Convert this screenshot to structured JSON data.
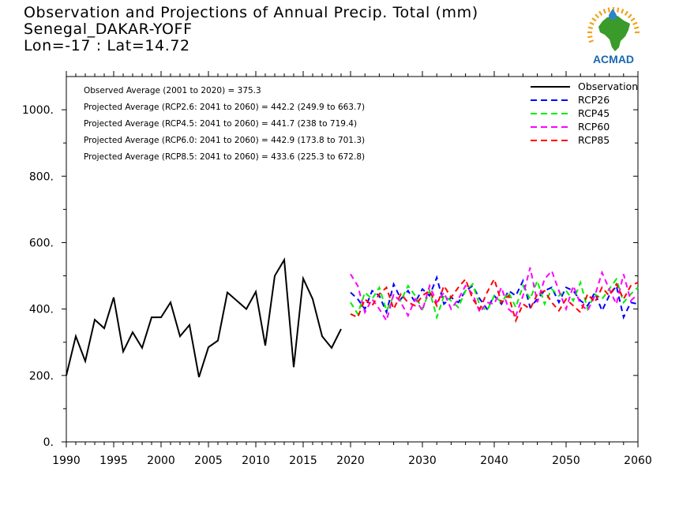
{
  "header": {
    "title": "Observation and Projections of Annual Precip. Total (mm)",
    "station": "Senegal_DAKAR-YOFF",
    "coords": "Lon=-17 : Lat=14.72"
  },
  "logo": {
    "text": "ACMAD",
    "icon": "africa-sun-logo-icon",
    "colors": {
      "africa": "#3a9a2a",
      "rays": "#f2a21a",
      "drop": "#2f84c9",
      "text": "#1a68b0"
    }
  },
  "stats": [
    "Observed Average (2001 to 2020) = 375.3",
    "Projected Average (RCP2.6: 2041 to 2060) = 442.2 (249.9 to 663.7)",
    "Projected Average (RCP4.5: 2041 to 2060) = 441.7 (238 to 719.4)",
    "Projected Average (RCP6.0: 2041 to 2060) = 442.9 (173.8 to 701.3)",
    "Projected Average (RCP8.5: 2041 to 2060) = 433.6 (225.3 to 672.8)"
  ],
  "chart_data": {
    "type": "line",
    "title": "Observation and Projections of Annual Precip. Total (mm)",
    "xlabel": "",
    "ylabel": "",
    "xlim": [
      1990,
      2060
    ],
    "ylim": [
      0,
      1100
    ],
    "x_axis_break": 2020,
    "x_ticks": [
      1990,
      1995,
      2000,
      2005,
      2010,
      2015,
      2020,
      2030,
      2040,
      2050,
      2060
    ],
    "x_tick_labels": [
      "1990",
      "1995",
      "2000",
      "2005",
      "2010",
      "2015",
      "2020",
      "2030",
      "2040",
      "2050",
      "2060"
    ],
    "y_ticks": [
      0,
      200,
      400,
      600,
      800,
      1000
    ],
    "y_tick_labels": [
      "0.",
      "200.",
      "400.",
      "600.",
      "800.",
      "1000."
    ],
    "grid": false,
    "legend_position": "top-right",
    "series": [
      {
        "name": "Observation",
        "color": "#000000",
        "style": "solid",
        "x": [
          1990,
          1991,
          1992,
          1993,
          1994,
          1995,
          1996,
          1997,
          1998,
          1999,
          2000,
          2001,
          2002,
          2003,
          2004,
          2005,
          2006,
          2007,
          2008,
          2009,
          2010,
          2011,
          2012,
          2013,
          2014,
          2015,
          2016,
          2017,
          2018,
          2019,
          2020
        ],
        "values": [
          200,
          318,
          243,
          368,
          342,
          435,
          272,
          330,
          283,
          375,
          375,
          420,
          318,
          352,
          195,
          285,
          305,
          450,
          425,
          400,
          452,
          290,
          500,
          548,
          225,
          492,
          430,
          318,
          283,
          340,
          null
        ]
      },
      {
        "name": "RCP26",
        "color": "#0000ff",
        "style": "dashed",
        "x": [
          2020,
          2021,
          2022,
          2023,
          2024,
          2025,
          2026,
          2027,
          2028,
          2029,
          2030,
          2031,
          2032,
          2033,
          2034,
          2035,
          2036,
          2037,
          2038,
          2039,
          2040,
          2041,
          2042,
          2043,
          2044,
          2045,
          2046,
          2047,
          2048,
          2049,
          2050,
          2051,
          2052,
          2053,
          2054,
          2055,
          2056,
          2057,
          2058,
          2059,
          2060
        ],
        "values": [
          450,
          430,
          400,
          455,
          440,
          390,
          475,
          430,
          455,
          420,
          460,
          440,
          495,
          415,
          435,
          420,
          455,
          470,
          430,
          400,
          440,
          415,
          455,
          440,
          485,
          405,
          430,
          455,
          465,
          420,
          465,
          455,
          425,
          410,
          450,
          395,
          440,
          470,
          375,
          420,
          415
        ]
      },
      {
        "name": "RCP45",
        "color": "#00ee00",
        "style": "dashed",
        "x": [
          2020,
          2021,
          2022,
          2023,
          2024,
          2025,
          2026,
          2027,
          2028,
          2029,
          2030,
          2031,
          2032,
          2033,
          2034,
          2035,
          2036,
          2037,
          2038,
          2039,
          2040,
          2041,
          2042,
          2043,
          2044,
          2045,
          2046,
          2047,
          2048,
          2049,
          2050,
          2051,
          2052,
          2053,
          2054,
          2055,
          2056,
          2057,
          2058,
          2059,
          2060
        ],
        "values": [
          420,
          385,
          450,
          430,
          465,
          395,
          440,
          425,
          470,
          440,
          400,
          455,
          375,
          440,
          425,
          405,
          455,
          475,
          410,
          395,
          440,
          420,
          450,
          405,
          470,
          430,
          485,
          415,
          460,
          440,
          455,
          425,
          480,
          400,
          445,
          430,
          460,
          490,
          420,
          445,
          465
        ]
      },
      {
        "name": "RCP60",
        "color": "#ff00ff",
        "style": "dashed",
        "x": [
          2020,
          2021,
          2022,
          2023,
          2024,
          2025,
          2026,
          2027,
          2028,
          2029,
          2030,
          2031,
          2032,
          2033,
          2034,
          2035,
          2036,
          2037,
          2038,
          2039,
          2040,
          2041,
          2042,
          2043,
          2044,
          2045,
          2046,
          2047,
          2048,
          2049,
          2050,
          2051,
          2052,
          2053,
          2054,
          2055,
          2056,
          2057,
          2058,
          2059,
          2060
        ],
        "values": [
          505,
          470,
          390,
          430,
          400,
          365,
          445,
          420,
          380,
          430,
          395,
          470,
          420,
          450,
          400,
          430,
          470,
          445,
          390,
          420,
          415,
          465,
          400,
          380,
          440,
          525,
          420,
          490,
          515,
          455,
          400,
          470,
          415,
          395,
          440,
          510,
          460,
          415,
          505,
          425,
          445
        ]
      },
      {
        "name": "RCP85",
        "color": "#ff0000",
        "style": "dashed",
        "x": [
          2020,
          2021,
          2022,
          2023,
          2024,
          2025,
          2026,
          2027,
          2028,
          2029,
          2030,
          2031,
          2032,
          2033,
          2034,
          2035,
          2036,
          2037,
          2038,
          2039,
          2040,
          2041,
          2042,
          2043,
          2044,
          2045,
          2046,
          2047,
          2048,
          2049,
          2050,
          2051,
          2052,
          2053,
          2054,
          2055,
          2056,
          2057,
          2058,
          2059,
          2060
        ],
        "values": [
          385,
          375,
          430,
          410,
          445,
          465,
          400,
          445,
          420,
          410,
          440,
          455,
          410,
          470,
          435,
          465,
          490,
          430,
          400,
          450,
          490,
          420,
          440,
          365,
          415,
          400,
          445,
          455,
          420,
          395,
          430,
          410,
          390,
          445,
          420,
          465,
          440,
          475,
          430,
          470,
          480
        ]
      }
    ]
  }
}
